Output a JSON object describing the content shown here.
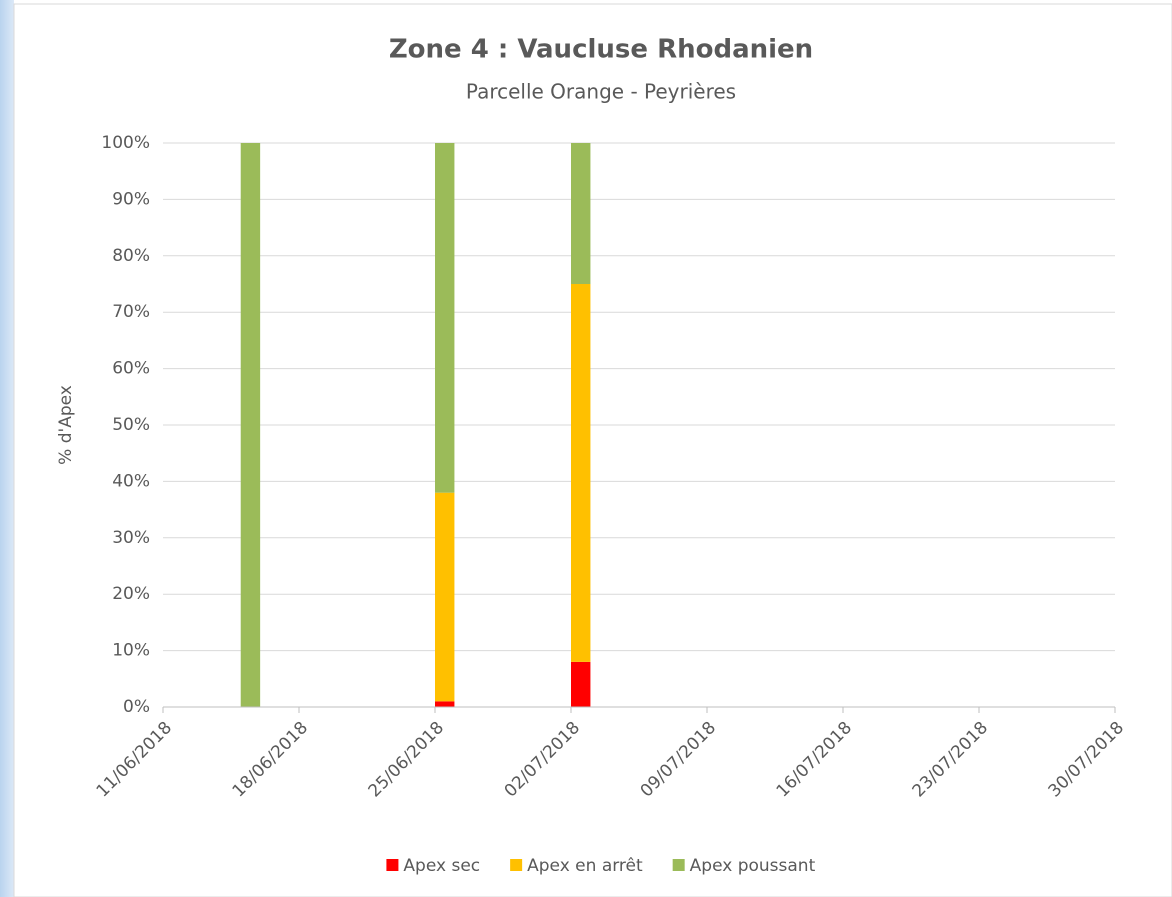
{
  "chart_data": {
    "type": "stacked-bar",
    "title": "Zone 4 : Vaucluse Rhodanien",
    "subtitle": "Parcelle Orange - Peyrières",
    "y_label": "% d'Apex",
    "x": [
      "15/06/2018",
      "25/06/2018",
      "02/07/2018"
    ],
    "series": [
      {
        "name": "Apex sec",
        "color": "#ff0000",
        "values": [
          0,
          1,
          8
        ]
      },
      {
        "name": "Apex en arrêt",
        "color": "#ffc000",
        "values": [
          0,
          37,
          67
        ]
      },
      {
        "name": "Apex poussant",
        "color": "#9bbb59",
        "values": [
          100,
          62,
          25
        ]
      }
    ],
    "xlim": [
      "11/06/2018",
      "30/07/2018"
    ],
    "xticks": [
      "11/06/2018",
      "18/06/2018",
      "25/06/2018",
      "02/07/2018",
      "09/07/2018",
      "16/07/2018",
      "23/07/2018",
      "30/07/2018"
    ],
    "ylim": [
      0,
      100
    ],
    "yticks": [
      {
        "value": 0,
        "label": "0%"
      },
      {
        "value": 10,
        "label": "10%"
      },
      {
        "value": 20,
        "label": "20%"
      },
      {
        "value": 30,
        "label": "30%"
      },
      {
        "value": 40,
        "label": "40%"
      },
      {
        "value": 50,
        "label": "50%"
      },
      {
        "value": 60,
        "label": "60%"
      },
      {
        "value": 70,
        "label": "70%"
      },
      {
        "value": 80,
        "label": "80%"
      },
      {
        "value": 90,
        "label": "90%"
      },
      {
        "value": 100,
        "label": "100%"
      }
    ],
    "grid": true,
    "legend": "bottom"
  }
}
